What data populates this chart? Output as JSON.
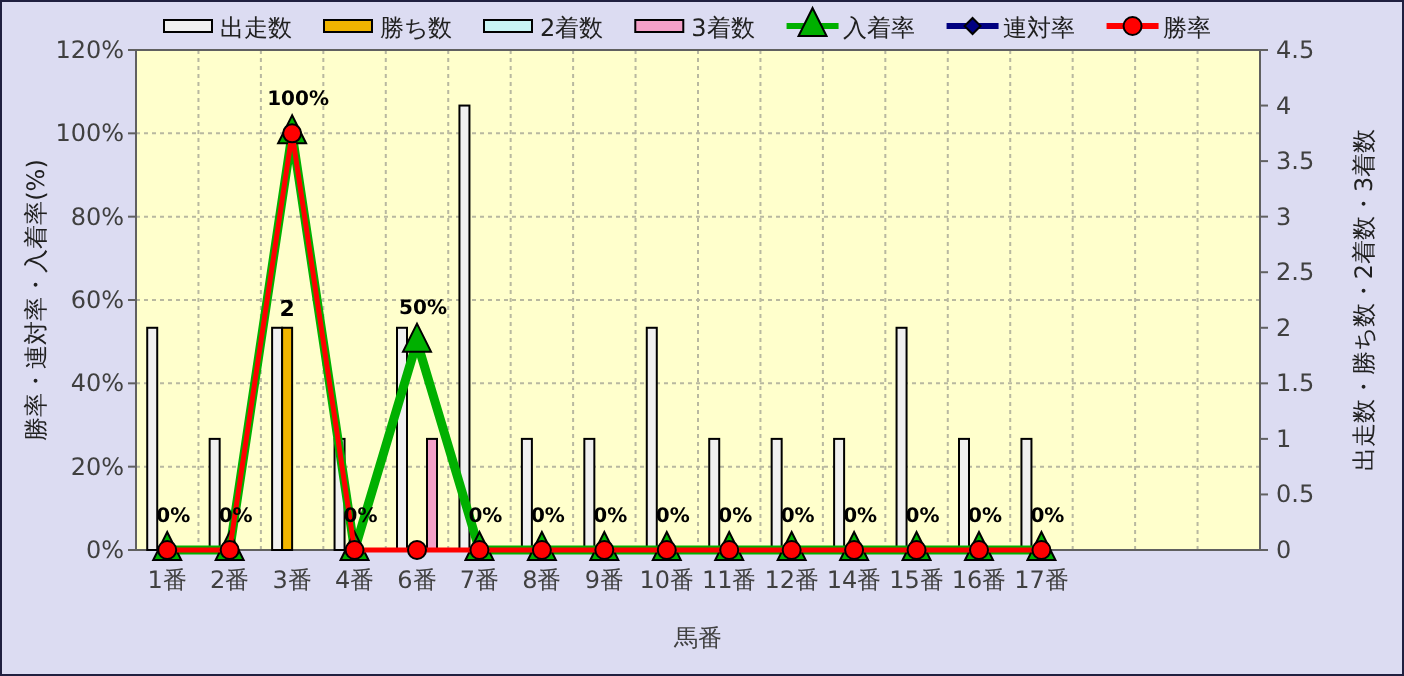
{
  "chart_data": {
    "type": "bar",
    "xlabel": "馬番",
    "ylabel": "勝率・連対率・入着率(%)",
    "y2label": "出走数・勝ち数・2着数・3着数",
    "categories": [
      "1番",
      "2番",
      "3番",
      "4番",
      "6番",
      "7番",
      "8番",
      "9番",
      "10番",
      "11番",
      "12番",
      "14番",
      "15番",
      "16番",
      "17番",
      null,
      null,
      null
    ],
    "series": [
      {
        "name": "出走数",
        "axis": "y2",
        "color": "#f0f0f0",
        "values": [
          2,
          1,
          2,
          1,
          2,
          4,
          1,
          1,
          2,
          1,
          1,
          1,
          2,
          1,
          1,
          null,
          null,
          null
        ]
      },
      {
        "name": "勝ち数",
        "axis": "y2",
        "color": "#f0b400",
        "values": [
          0,
          0,
          2,
          0,
          0,
          0,
          0,
          0,
          0,
          0,
          0,
          0,
          0,
          0,
          0,
          null,
          null,
          null
        ],
        "value_labels": [
          null,
          null,
          "2",
          null,
          null,
          null,
          null,
          null,
          null,
          null,
          null,
          null,
          null,
          null,
          null,
          null,
          null,
          null
        ]
      },
      {
        "name": "2着数",
        "axis": "y2",
        "color": "#c8f4f4",
        "values": [
          0,
          0,
          0,
          0,
          0,
          0,
          0,
          0,
          0,
          0,
          0,
          0,
          0,
          0,
          0,
          null,
          null,
          null
        ]
      },
      {
        "name": "3着数",
        "axis": "y2",
        "color": "#f4a0c8",
        "values": [
          0,
          0,
          0,
          0,
          1,
          0,
          0,
          0,
          0,
          0,
          0,
          0,
          0,
          0,
          0,
          null,
          null,
          null
        ]
      },
      {
        "name": "入着率",
        "type": "line",
        "color": "#00b000",
        "marker": "triangle",
        "values": [
          0,
          0,
          100,
          0,
          50,
          0,
          0,
          0,
          0,
          0,
          0,
          0,
          0,
          0,
          0,
          null,
          null,
          null
        ],
        "value_labels": [
          "0%",
          "0%",
          "100%",
          "0%",
          "50%",
          "0%",
          "0%",
          "0%",
          "0%",
          "0%",
          "0%",
          "0%",
          "0%",
          "0%",
          "0%",
          null,
          null,
          null
        ]
      },
      {
        "name": "連対率",
        "type": "line",
        "color": "#000080",
        "marker": "diamond",
        "values": [
          null,
          null,
          null,
          null,
          null,
          null,
          null,
          null,
          null,
          null,
          null,
          null,
          null,
          null,
          null,
          null,
          null,
          null
        ]
      },
      {
        "name": "勝率",
        "type": "line",
        "color": "#ff0000",
        "marker": "circle",
        "values": [
          0,
          0,
          100,
          0,
          0,
          0,
          0,
          0,
          0,
          0,
          0,
          0,
          0,
          0,
          0,
          null,
          null,
          null
        ]
      }
    ],
    "ylim": [
      0,
      120
    ],
    "yticks": [
      {
        "value": 0,
        "label": "0%"
      },
      {
        "value": 20,
        "label": "20%"
      },
      {
        "value": 40,
        "label": "40%"
      },
      {
        "value": 60,
        "label": "60%"
      },
      {
        "value": 80,
        "label": "80%"
      },
      {
        "value": 100,
        "label": "100%"
      },
      {
        "value": 120,
        "label": "120%"
      }
    ],
    "y2lim": [
      0,
      4.5
    ],
    "y2ticks": [
      0,
      0.5,
      1,
      1.5,
      2,
      2.5,
      3,
      3.5,
      4,
      4.5
    ],
    "grid": true,
    "legend": "top"
  }
}
